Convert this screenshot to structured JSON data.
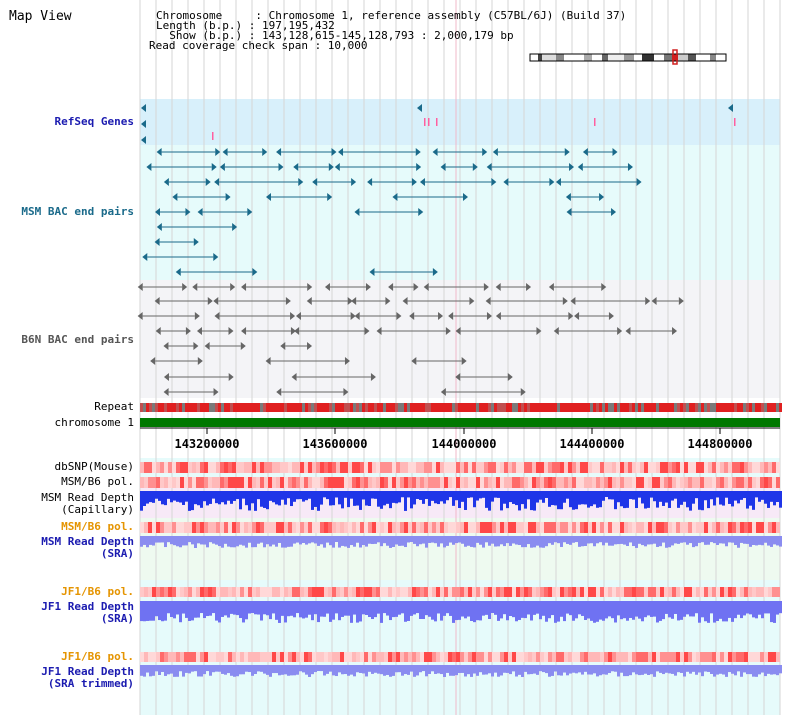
{
  "view_title": "Map View",
  "info": {
    "chromosome": "Chromosome     : Chromosome 1, reference assembly (C57BL/6J) (Build 37)",
    "length": "Length (b.p.) : 197,195,432",
    "show": "  Show (b.p.) : 143,128,615-145,128,793 : 2,000,179 bp",
    "span": "Read coverage check span : 10,000"
  },
  "tracks": {
    "refseq": "RefSeq Genes",
    "msm_bac": "MSM BAC end pairs",
    "b6n_bac": "B6N BAC end pairs",
    "repeat": "Repeat",
    "chromosome": "chromosome 1",
    "dbsnp": "dbSNP(Mouse)",
    "msm_b6_pol": "MSM/B6 pol.",
    "msm_depth_cap": "MSM Read Depth\n(Capillary)",
    "msm_b6_pol2": "MSM/B6 pol.",
    "msm_depth_sra": "MSM Read Depth\n(SRA)",
    "jf1_b6_pol": "JF1/B6 pol.",
    "jf1_depth_sra": "JF1 Read Depth\n(SRA)",
    "jf1_b6_pol2": "JF1/B6 pol.",
    "jf1_depth_trim": "JF1 Read Depth\n(SRA trimmed)"
  },
  "axis_ticks": [
    "143200000",
    "143600000",
    "144000000",
    "144400000",
    "144800000"
  ],
  "colors": {
    "blue_label": "#1b1bb0",
    "teal_label": "#1a6a8a",
    "orange_label": "#e59400",
    "chrom_green": "#007800"
  }
}
